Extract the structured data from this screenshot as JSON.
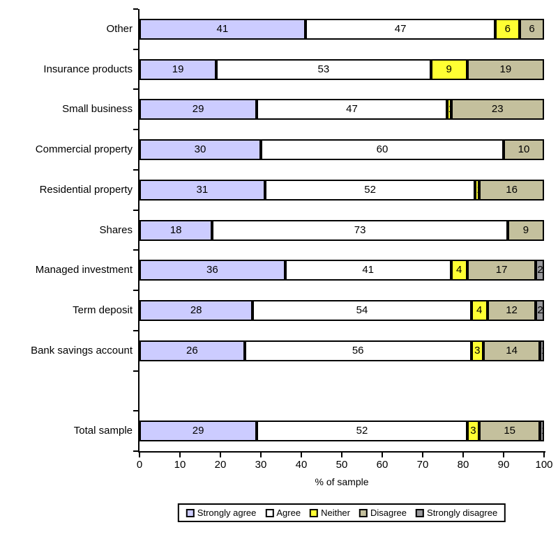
{
  "chart_data": {
    "type": "bar",
    "orientation": "horizontal",
    "stacked": true,
    "title": "",
    "xlabel": "% of sample",
    "xlim": [
      0,
      100
    ],
    "xticks": [
      0,
      10,
      20,
      30,
      40,
      50,
      60,
      70,
      80,
      90,
      100
    ],
    "grid": false,
    "legend_position": "bottom",
    "categories": [
      "Other",
      "Insurance products",
      "Small business",
      "Commercial property",
      "Residential property",
      "Shares",
      "Managed investment",
      "Term deposit",
      "Bank savings account",
      "Total sample"
    ],
    "spacer_after_category_index": 8,
    "series": [
      {
        "name": "Strongly agree",
        "color": "#CCCCFF",
        "values": [
          41,
          19,
          29,
          30,
          31,
          18,
          36,
          28,
          26,
          29
        ]
      },
      {
        "name": "Agree",
        "color": "#FFFFFF",
        "values": [
          47,
          53,
          47,
          60,
          52,
          73,
          41,
          54,
          56,
          52
        ]
      },
      {
        "name": "Neither",
        "color": "#FFFF33",
        "values": [
          6,
          9,
          1,
          0,
          1,
          0,
          4,
          4,
          3,
          3
        ]
      },
      {
        "name": "Disagree",
        "color": "#C4C09D",
        "values": [
          6,
          19,
          23,
          10,
          16,
          9,
          17,
          12,
          14,
          15
        ]
      },
      {
        "name": "Strongly disagree",
        "color": "#99999C",
        "values": [
          0,
          0,
          0,
          0,
          0,
          0,
          2,
          2,
          1,
          1
        ]
      }
    ]
  },
  "colors": {
    "axis": "#000000",
    "background": "#FFFFFF"
  }
}
